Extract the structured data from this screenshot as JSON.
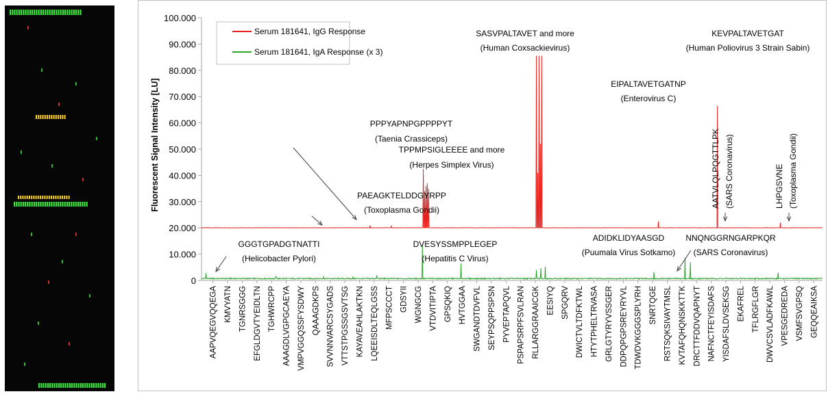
{
  "colors": {
    "igg": "#e8201c",
    "iga": "#2aa52a",
    "arrow": "#404040",
    "axis": "#a6a6a6",
    "spot_green": "#39e639",
    "spot_red": "#ff3b2f",
    "spot_yellow": "#ffd21f"
  },
  "chart_data": {
    "type": "line",
    "ylabel": "Fluorescent Signal Intensity [LU]",
    "ylim": [
      0,
      100000
    ],
    "yticks": [
      0,
      10000,
      20000,
      30000,
      40000,
      50000,
      60000,
      70000,
      80000,
      90000,
      100000
    ],
    "ytick_labels": [
      "0",
      "10.000",
      "20.000",
      "30.000",
      "40.000",
      "50.000",
      "60.000",
      "70.000",
      "80.000",
      "90.000",
      "100.000"
    ],
    "grid": false,
    "legend_position": "top-left",
    "x_points": 1400,
    "categories": [
      "AAPVQEGVQQEGA",
      "KMVYATN",
      "TGNRSGGG",
      "EFGLDGVTYEIDLTN",
      "TGHWRCPP",
      "AAAGDLVGPGCAEYA",
      "VMPVGGQSSFYSDWY",
      "QAAAGDKPS",
      "SVVNNVARCSYGADS",
      "VTTSTPGSSGSVTSG",
      "KAYAVEAHLAKTKN",
      "LQEEISDLTEQLGSS",
      "MFPSCCCT",
      "GDSYII",
      "WGNGCG",
      "VTDVITIPTA",
      "GPSQKIQ",
      "HVTGGAA",
      "SWGANDTDVFVL",
      "SEYPSQPPSPSN",
      "PYVEPTAPQVL",
      "PSPAPSRPFSVLRAN",
      "RLLARGGRAAICGK",
      "EESIYQ",
      "SPGQRV",
      "DWICTVLTDFKTWL",
      "HTYTPHELTRVASA",
      "GRLGTYRYVSSGER",
      "DDPQPGPSREYRYVL",
      "TDWDVKGGGSPLYRH",
      "SNRTQGE",
      "RSTSQKSIVAYTMSL",
      "KVTAFQHQNSKKTTK",
      "DRCTTFDDVQAPNYT",
      "NAFNCTFEYISDAFS",
      "YISDAFSLDVSEKSG",
      "EKAFREL",
      "TFLRGFLGR",
      "DWVCSVLADFKAWL",
      "VPESGEDREDA",
      "VSMFSVGPSQ",
      "GEQQEAIKSA"
    ],
    "series": [
      {
        "name": "Serum 181641, IgG Response",
        "baseline": 20000,
        "peaks": [
          [
            380,
            21000
          ],
          [
            428,
            20800
          ],
          [
            500,
            42500
          ],
          [
            503,
            34000
          ],
          [
            506,
            36000
          ],
          [
            509,
            37000
          ],
          [
            512,
            35000
          ],
          [
            755,
            85500
          ],
          [
            758,
            41000
          ],
          [
            761,
            85500
          ],
          [
            764,
            52000
          ],
          [
            767,
            85500
          ],
          [
            1030,
            22500
          ],
          [
            1163,
            66500
          ],
          [
            1305,
            22000
          ],
          [
            1420,
            85500
          ],
          [
            1510,
            21000
          ]
        ]
      },
      {
        "name": "Serum 181641, IgA Response (x 3)",
        "baseline": 500,
        "peaks": [
          [
            10,
            2800
          ],
          [
            168,
            1500
          ],
          [
            275,
            1400
          ],
          [
            341,
            1300
          ],
          [
            395,
            2000
          ],
          [
            498,
            13800
          ],
          [
            585,
            6500
          ],
          [
            755,
            4000
          ],
          [
            765,
            4700
          ],
          [
            775,
            5300
          ],
          [
            1020,
            3200
          ],
          [
            1090,
            8700
          ],
          [
            1102,
            7000
          ],
          [
            1300,
            3000
          ],
          [
            1420,
            5000
          ],
          [
            1545,
            2300
          ]
        ]
      }
    ],
    "annotations": [
      {
        "text": "PPPYAPNPGPPPPYT",
        "subtext": "(Taenia Crassiceps)"
      },
      {
        "text": "TPPMPSIGLEEEE and more",
        "subtext": "(Herpes Simplex Virus)"
      },
      {
        "text": "PAEAGKTELDDGYRPP",
        "subtext": "(Toxoplasma Gondii)"
      },
      {
        "text": "SASVPALTAVET and more",
        "subtext": "(Human Coxsackievirus)"
      },
      {
        "text": "KEVPALTAVETGAT",
        "subtext": "(Human Poliovirus 3 Strain Sabin)"
      },
      {
        "text": "EIPALTAVETGATNP",
        "subtext": "(Enterovirus C)"
      },
      {
        "text": "AATVLQLPQGTTLPK",
        "subtext": "(SARS Coronavirus)"
      },
      {
        "text": "LHPGSVNE",
        "subtext": "(Toxoplasma Gondii)"
      },
      {
        "text": "GGGTGPADGTNATTI",
        "subtext": "(Helicobacter Pylori)"
      },
      {
        "text": "DVESYSSMPPLEGEP",
        "subtext": "(Hepatitis C Virus)"
      },
      {
        "text": "ADIDKLIDYAASGD",
        "subtext": "(Puumala Virus Sotkamo)"
      },
      {
        "text": "NNQNGGRNGARPKQR",
        "subtext": "(SARS Coronavirus)"
      }
    ]
  }
}
